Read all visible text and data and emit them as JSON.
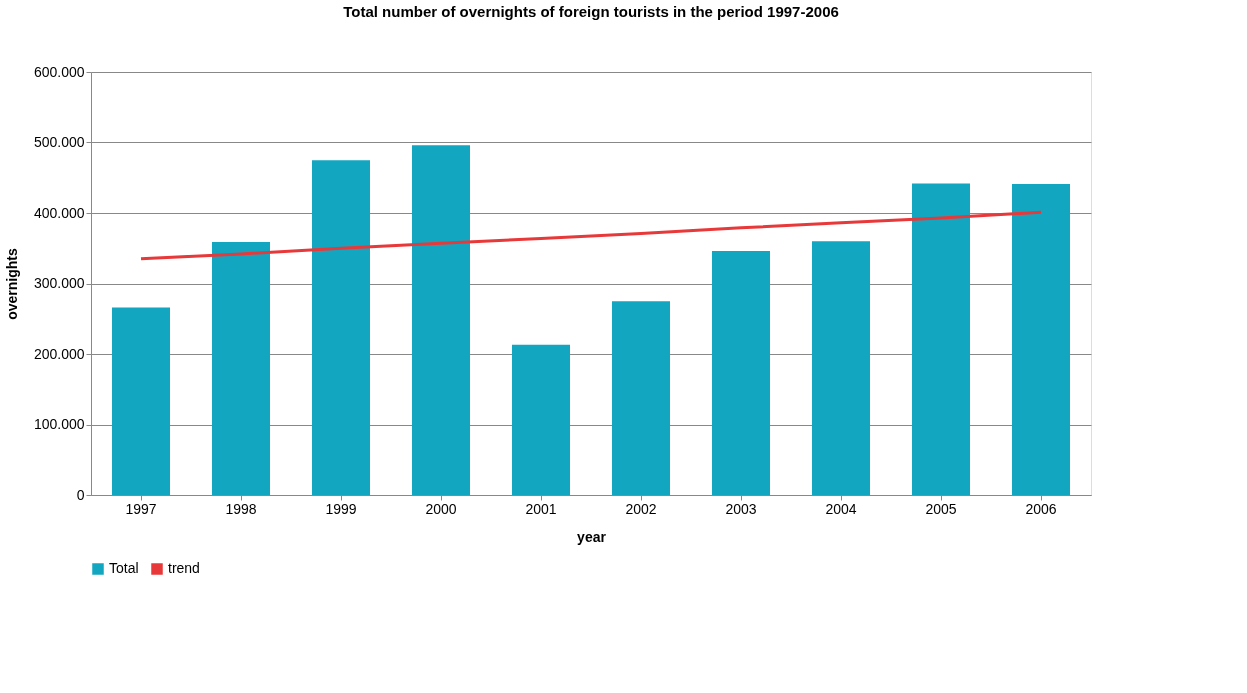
{
  "chart_data": {
    "type": "bar",
    "title": "Total number of overnights of foreign tourists in the period 1997-2006",
    "xlabel": "year",
    "ylabel": "overnights",
    "categories": [
      "1997",
      "1998",
      "1999",
      "2000",
      "2001",
      "2002",
      "2003",
      "2004",
      "2005",
      "2006"
    ],
    "series": [
      {
        "name": "Total",
        "color": "#13a6c0",
        "values": [
          266000,
          359000,
          475000,
          496000,
          213000,
          275000,
          346000,
          360000,
          442000,
          441000
        ]
      },
      {
        "name": "trend",
        "type": "line",
        "color": "#e8393a",
        "values": [
          335000,
          342000,
          350000,
          357000,
          364000,
          371000,
          379000,
          386000,
          393000,
          401000
        ]
      }
    ],
    "ylim": [
      0,
      600000
    ],
    "yticks": [
      0,
      {
        "value": 100000,
        "label": "100.000"
      },
      {
        "value": 200000,
        "label": "200.000"
      },
      {
        "value": 300000,
        "label": "300.000"
      },
      {
        "value": 400000,
        "label": "400.000"
      },
      {
        "value": 500000,
        "label": "500.000"
      },
      {
        "value": 600000,
        "label": "600.000"
      }
    ],
    "grid": "y",
    "legend": "bottom"
  }
}
